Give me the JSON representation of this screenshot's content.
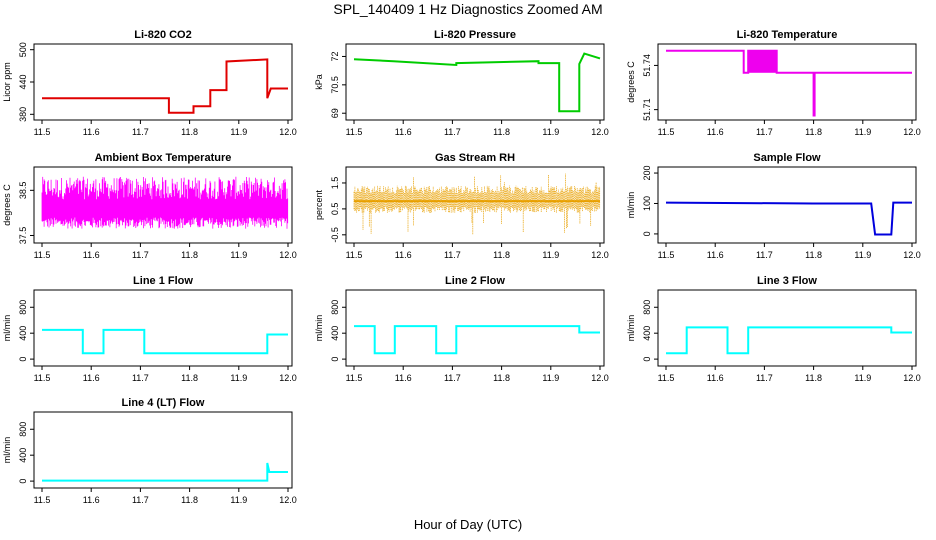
{
  "figure": {
    "title": "SPL_140409 1 Hz Diagnostics Zoomed AM",
    "xlabel": "Hour of Day (UTC)"
  },
  "chart_data": [
    {
      "type": "line",
      "title": "Li-820 CO2",
      "ylabel": "Licor ppm",
      "color": "#e00000",
      "xlim": [
        11.5,
        12.0
      ],
      "ylim": [
        375,
        505
      ],
      "xticks": [
        "11.5",
        "11.6",
        "11.7",
        "11.8",
        "11.9",
        "12.0"
      ],
      "yticks": [
        380,
        440,
        500
      ],
      "series": [
        {
          "x": [
            11.5,
            11.758,
            11.758,
            11.808,
            11.808,
            11.842,
            11.842,
            11.875,
            11.875,
            11.958,
            11.958,
            11.965,
            12.0
          ],
          "y": [
            410,
            410,
            383,
            383,
            395,
            395,
            425,
            425,
            478,
            482,
            410,
            428,
            428
          ]
        }
      ]
    },
    {
      "type": "line",
      "title": "Li-820 Pressure",
      "ylabel": "kPa",
      "color": "#00cc00",
      "xlim": [
        11.5,
        12.0
      ],
      "ylim": [
        68.8,
        72.5
      ],
      "xticks": [
        "11.5",
        "11.6",
        "11.7",
        "11.8",
        "11.9",
        "12.0"
      ],
      "yticks": [
        69.0,
        70.5,
        72.0
      ],
      "series": [
        {
          "x": [
            11.5,
            11.58,
            11.708,
            11.708,
            11.875,
            11.875,
            11.917,
            11.917,
            11.958,
            11.958,
            11.968,
            12.0
          ],
          "y": [
            71.85,
            71.75,
            71.55,
            71.65,
            71.75,
            71.65,
            71.65,
            69.1,
            69.1,
            71.6,
            72.15,
            71.9
          ]
        }
      ]
    },
    {
      "type": "line",
      "title": "Li-820 Temperature",
      "ylabel": "degrees C",
      "color": "#ee00ee",
      "xlim": [
        11.5,
        12.0
      ],
      "ylim": [
        51.705,
        51.7525
      ],
      "xticks": [
        "11.5",
        "11.6",
        "11.7",
        "11.8",
        "11.9",
        "12.0"
      ],
      "yticks": [
        51.71,
        51.74
      ],
      "series": [
        {
          "x": [
            11.5,
            11.658,
            11.658,
            11.667,
            11.667,
            11.725,
            11.725,
            11.8,
            11.8,
            11.802,
            11.802,
            12.0
          ],
          "y": [
            51.75,
            51.75,
            51.735,
            51.735,
            51.75,
            51.75,
            51.735,
            51.735,
            51.706,
            51.706,
            51.735,
            51.735
          ]
        }
      ]
    },
    {
      "type": "line",
      "title": "Ambient Box Temperature",
      "ylabel": "degrees C",
      "color": "#ff00ff",
      "xlim": [
        11.5,
        12.0
      ],
      "ylim": [
        37.4,
        38.95
      ],
      "xticks": [
        "11.5",
        "11.6",
        "11.7",
        "11.8",
        "11.9",
        "12.0"
      ],
      "yticks": [
        37.5,
        38.5
      ],
      "series": [
        {
          "x": [
            11.5,
            11.75,
            12.0
          ],
          "y": [
            38.05,
            38.05,
            38.05
          ]
        }
      ]
    },
    {
      "type": "line",
      "title": "Gas Stream RH",
      "ylabel": "percent",
      "color": "#e8a000",
      "xlim": [
        11.5,
        12.0
      ],
      "ylim": [
        -0.7,
        2.0
      ],
      "xticks": [
        "11.5",
        "11.6",
        "11.7",
        "11.8",
        "11.9",
        "12.0"
      ],
      "yticks": [
        -0.5,
        0.5,
        1.5
      ],
      "series": [
        {
          "x": [
            11.5,
            11.75,
            12.0
          ],
          "y": [
            0.8,
            0.8,
            0.8
          ]
        }
      ]
    },
    {
      "type": "line",
      "title": "Sample Flow",
      "ylabel": "ml/min",
      "color": "#0000dd",
      "xlim": [
        11.5,
        12.0
      ],
      "ylim": [
        -20,
        210
      ],
      "xticks": [
        "11.5",
        "11.6",
        "11.7",
        "11.8",
        "11.9",
        "12.0"
      ],
      "yticks": [
        0,
        100,
        200
      ],
      "series": [
        {
          "x": [
            11.5,
            11.8,
            11.917,
            11.925,
            11.958,
            11.962,
            12.0
          ],
          "y": [
            103,
            100,
            100,
            -2,
            -2,
            103,
            103
          ]
        }
      ]
    },
    {
      "type": "line",
      "title": "Line 1 Flow",
      "ylabel": "ml/min",
      "color": "#00ffff",
      "xlim": [
        11.5,
        12.0
      ],
      "ylim": [
        -60,
        1020
      ],
      "xticks": [
        "11.5",
        "11.6",
        "11.7",
        "11.8",
        "11.9",
        "12.0"
      ],
      "yticks": [
        0,
        400,
        800
      ],
      "series": [
        {
          "x": [
            11.5,
            11.583,
            11.583,
            11.625,
            11.625,
            11.708,
            11.708,
            11.958,
            11.958,
            12.0
          ],
          "y": [
            450,
            450,
            90,
            90,
            450,
            450,
            90,
            90,
            380,
            380
          ]
        }
      ]
    },
    {
      "type": "line",
      "title": "Line 2 Flow",
      "ylabel": "ml/min",
      "color": "#00ffff",
      "xlim": [
        11.5,
        12.0
      ],
      "ylim": [
        -60,
        1020
      ],
      "xticks": [
        "11.5",
        "11.6",
        "11.7",
        "11.8",
        "11.9",
        "12.0"
      ],
      "yticks": [
        0,
        400,
        800
      ],
      "series": [
        {
          "x": [
            11.5,
            11.542,
            11.542,
            11.583,
            11.583,
            11.667,
            11.667,
            11.708,
            11.708,
            11.958,
            11.958,
            12.0
          ],
          "y": [
            510,
            510,
            90,
            90,
            510,
            510,
            90,
            90,
            510,
            510,
            410,
            410
          ]
        }
      ]
    },
    {
      "type": "line",
      "title": "Line 3 Flow",
      "ylabel": "ml/min",
      "color": "#00ffff",
      "xlim": [
        11.5,
        12.0
      ],
      "ylim": [
        -60,
        1020
      ],
      "xticks": [
        "11.5",
        "11.6",
        "11.7",
        "11.8",
        "11.9",
        "12.0"
      ],
      "yticks": [
        0,
        400,
        800
      ],
      "series": [
        {
          "x": [
            11.5,
            11.542,
            11.542,
            11.625,
            11.625,
            11.667,
            11.667,
            11.958,
            11.958,
            12.0
          ],
          "y": [
            90,
            90,
            490,
            490,
            90,
            90,
            490,
            490,
            410,
            410
          ]
        }
      ]
    },
    {
      "type": "line",
      "title": "Line 4 (LT) Flow",
      "ylabel": "ml/min",
      "color": "#00ffff",
      "xlim": [
        11.5,
        12.0
      ],
      "ylim": [
        -60,
        1020
      ],
      "xticks": [
        "11.5",
        "11.6",
        "11.7",
        "11.8",
        "11.9",
        "12.0"
      ],
      "yticks": [
        0,
        400,
        800
      ],
      "series": [
        {
          "x": [
            11.5,
            11.958,
            11.958,
            11.962,
            11.966,
            12.0
          ],
          "y": [
            8,
            8,
            280,
            140,
            140,
            140
          ]
        }
      ]
    }
  ]
}
